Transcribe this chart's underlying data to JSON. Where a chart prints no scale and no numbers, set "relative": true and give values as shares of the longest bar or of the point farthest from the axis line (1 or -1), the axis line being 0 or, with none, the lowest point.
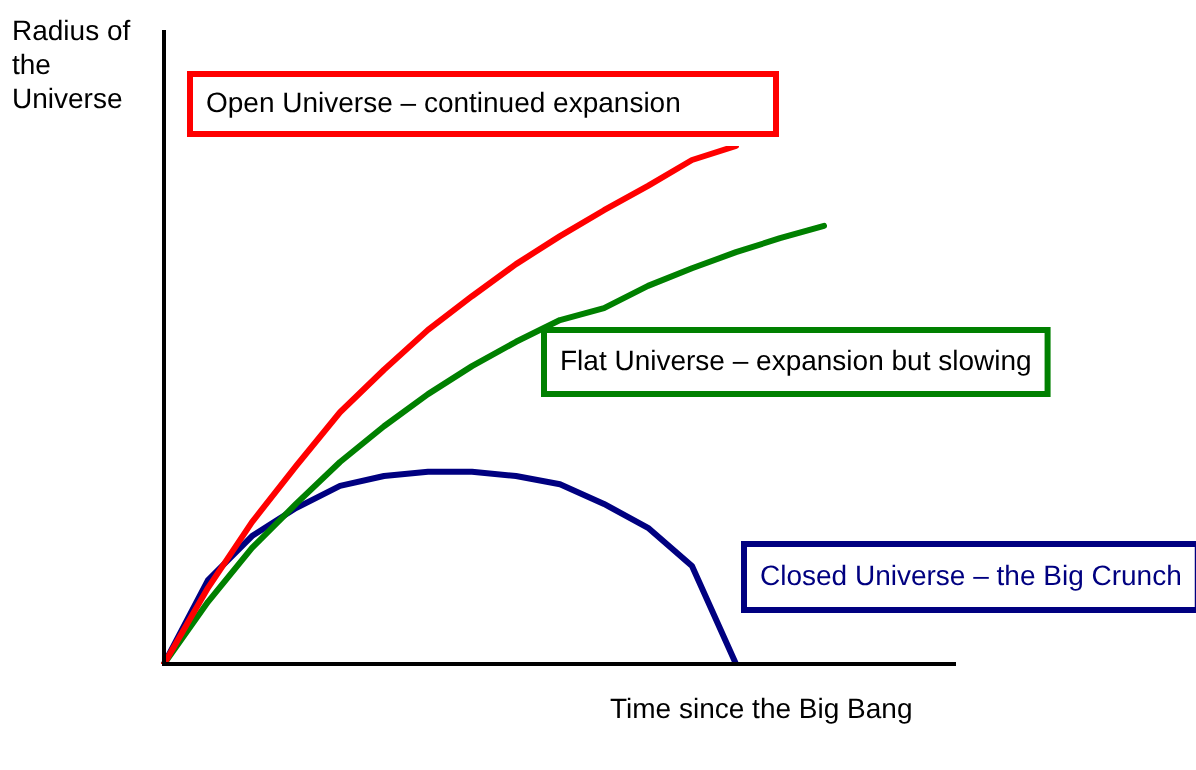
{
  "chart_data": {
    "type": "line",
    "relative": true,
    "xlabel": "Time since the Big Bang",
    "ylabel": "Radius of the Universe",
    "legend": false,
    "marker": "none",
    "line_style": "solid",
    "categories": [
      null,
      null,
      null,
      null,
      null,
      null,
      null,
      null,
      null,
      null,
      null,
      null,
      null,
      null,
      null,
      null,
      null,
      null,
      null
    ],
    "series": [
      {
        "name": "Open Universe – continued expansion",
        "color": "#ff0000",
        "values": [
          0,
          0.147,
          0.274,
          0.382,
          0.486,
          0.568,
          0.645,
          0.71,
          0.772,
          0.826,
          0.876,
          0.923,
          0.973,
          1,
          null,
          null,
          null,
          null,
          null
        ]
      },
      {
        "name": "Flat Universe – expansion but slowing",
        "color": "#008000",
        "values": [
          0,
          0.12,
          0.224,
          0.309,
          0.39,
          0.459,
          0.521,
          0.575,
          0.622,
          0.664,
          0.687,
          0.73,
          0.764,
          0.795,
          0.822,
          0.846,
          null,
          null,
          null
        ]
      },
      {
        "name": "Closed Universe – the Big Crunch",
        "color": "#000080",
        "values": [
          0,
          0.162,
          0.247,
          0.301,
          0.344,
          0.363,
          0.371,
          0.371,
          0.363,
          0.347,
          0.309,
          0.263,
          0.189,
          0,
          null,
          null,
          null,
          null,
          null
        ]
      }
    ]
  }
}
